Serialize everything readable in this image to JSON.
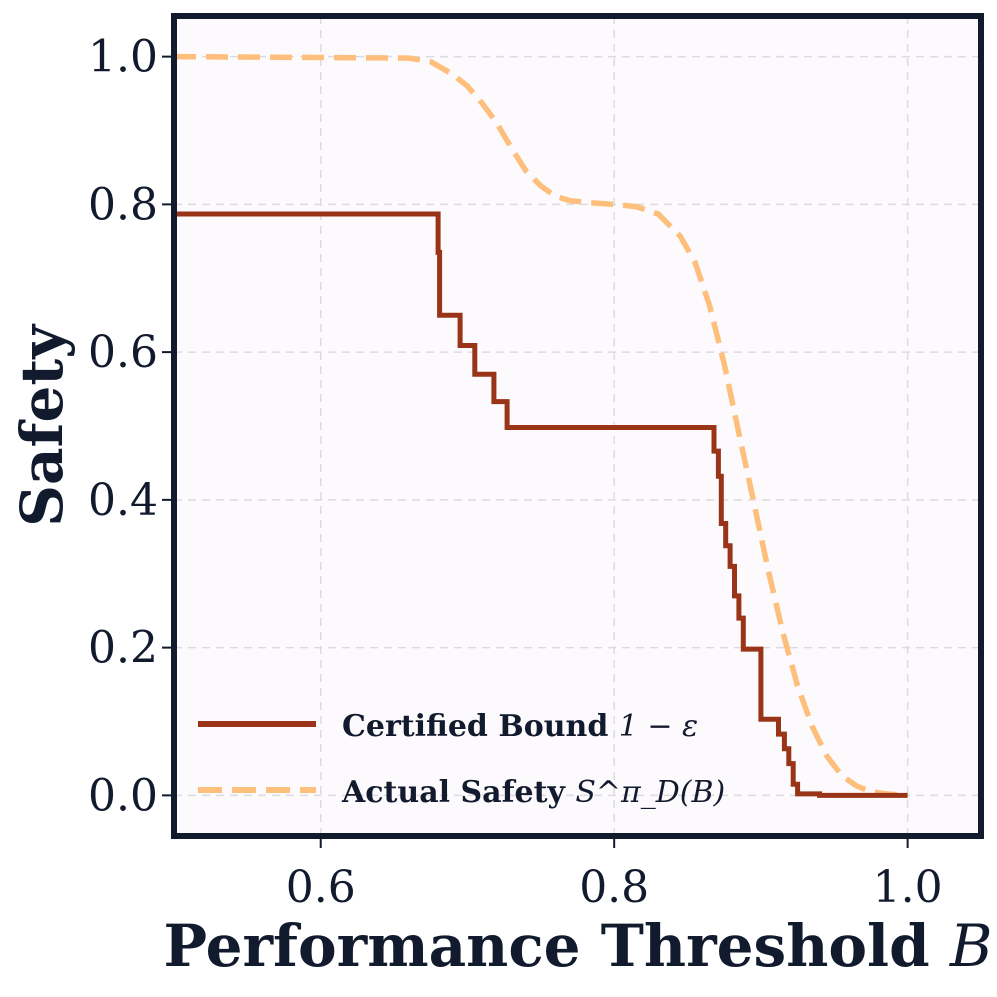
{
  "chart_data": {
    "type": "line",
    "title": "",
    "xlabel": "Performance Threshold",
    "xlabel_var": "B",
    "ylabel": "Safety",
    "xlim": [
      0.5,
      1.05
    ],
    "ylim": [
      -0.055,
      1.055
    ],
    "xticks": [
      0.6,
      0.8,
      1.0
    ],
    "xtick_labels": [
      "0.6",
      "0.8",
      "1.0"
    ],
    "yticks": [
      0.0,
      0.2,
      0.4,
      0.6,
      0.8,
      1.0
    ],
    "ytick_labels": [
      "0.0",
      "0.2",
      "0.4",
      "0.6",
      "0.8",
      "1.0"
    ],
    "grid": true,
    "legend_position": "bottom-left",
    "background_color": "#fcfafc",
    "frame_color": "#121a2e",
    "series": [
      {
        "name": "Certified Bound",
        "math": "1 − ε",
        "style": "step",
        "color": "#9a3418",
        "x": [
          0.5,
          0.68,
          0.68,
          0.681,
          0.681,
          0.695,
          0.695,
          0.705,
          0.705,
          0.718,
          0.718,
          0.727,
          0.727,
          0.868,
          0.868,
          0.871,
          0.871,
          0.873,
          0.873,
          0.876,
          0.876,
          0.879,
          0.879,
          0.882,
          0.882,
          0.885,
          0.885,
          0.888,
          0.888,
          0.9,
          0.9,
          0.912,
          0.912,
          0.916,
          0.916,
          0.919,
          0.919,
          0.922,
          0.922,
          0.925,
          0.925,
          0.94,
          0.94,
          1.0
        ],
        "y": [
          0.787,
          0.787,
          0.735,
          0.735,
          0.65,
          0.65,
          0.609,
          0.609,
          0.57,
          0.57,
          0.533,
          0.533,
          0.498,
          0.498,
          0.466,
          0.466,
          0.432,
          0.432,
          0.368,
          0.368,
          0.338,
          0.338,
          0.31,
          0.31,
          0.27,
          0.27,
          0.24,
          0.24,
          0.198,
          0.198,
          0.103,
          0.103,
          0.083,
          0.083,
          0.063,
          0.063,
          0.043,
          0.043,
          0.015,
          0.015,
          0.002,
          0.002,
          0.0,
          0.0
        ]
      },
      {
        "name": "Actual Safety",
        "math": "S^π_D(B)",
        "style": "dashed",
        "color": "#fdbf7b",
        "x": [
          0.5,
          0.66,
          0.675,
          0.69,
          0.7,
          0.71,
          0.72,
          0.73,
          0.74,
          0.75,
          0.76,
          0.77,
          0.785,
          0.8,
          0.815,
          0.83,
          0.845,
          0.855,
          0.865,
          0.875,
          0.885,
          0.895,
          0.905,
          0.915,
          0.925,
          0.935,
          0.945,
          0.955,
          0.965,
          0.975,
          0.985,
          1.0
        ],
        "y": [
          1.0,
          0.998,
          0.993,
          0.976,
          0.96,
          0.937,
          0.91,
          0.876,
          0.845,
          0.825,
          0.811,
          0.805,
          0.802,
          0.8,
          0.797,
          0.787,
          0.757,
          0.722,
          0.663,
          0.584,
          0.49,
          0.398,
          0.305,
          0.22,
          0.148,
          0.093,
          0.053,
          0.027,
          0.013,
          0.005,
          0.002,
          0.0
        ]
      }
    ]
  }
}
